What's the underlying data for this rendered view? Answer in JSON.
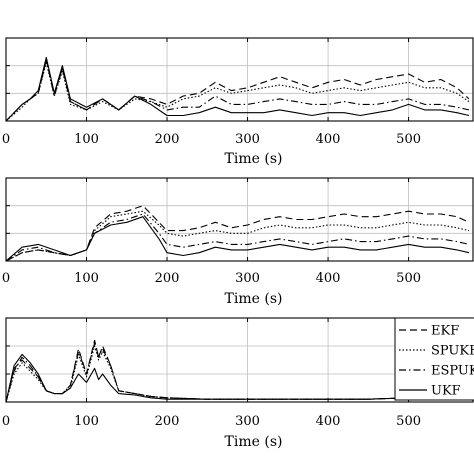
{
  "chart_data": [
    {
      "type": "line",
      "xlabel": "Time (s)",
      "xlim": [
        0,
        580
      ],
      "xticks": [
        0,
        100,
        200,
        300,
        400,
        500
      ],
      "xtick_labels": [
        "0",
        "100",
        "200",
        "300",
        "400",
        "500"
      ],
      "ylim": [
        0,
        3
      ],
      "yticks": [
        0,
        1,
        2,
        3
      ],
      "grid": true,
      "series": [
        {
          "name": "EKF",
          "x": [
            0,
            20,
            30,
            40,
            50,
            60,
            70,
            80,
            100,
            120,
            140,
            160,
            180,
            200,
            220,
            240,
            260,
            280,
            300,
            320,
            340,
            360,
            380,
            400,
            420,
            440,
            460,
            480,
            500,
            520,
            540,
            560,
            575
          ],
          "y": [
            0,
            0.6,
            0.8,
            1.0,
            2.2,
            1.0,
            1.9,
            0.7,
            0.4,
            0.8,
            0.4,
            0.9,
            0.8,
            0.6,
            0.9,
            1.0,
            1.4,
            1.1,
            1.2,
            1.4,
            1.6,
            1.4,
            1.2,
            1.4,
            1.5,
            1.3,
            1.5,
            1.6,
            1.7,
            1.4,
            1.5,
            1.2,
            0.8
          ]
        },
        {
          "name": "SPUKF",
          "x": [
            0,
            20,
            30,
            40,
            50,
            60,
            70,
            80,
            100,
            120,
            140,
            160,
            180,
            200,
            220,
            240,
            260,
            280,
            300,
            320,
            340,
            360,
            380,
            400,
            420,
            440,
            460,
            480,
            500,
            520,
            540,
            560,
            575
          ],
          "y": [
            0,
            0.5,
            0.8,
            1.0,
            2.1,
            0.9,
            1.8,
            0.6,
            0.4,
            0.7,
            0.4,
            0.8,
            0.7,
            0.5,
            0.8,
            0.9,
            1.2,
            1.0,
            1.1,
            1.2,
            1.3,
            1.2,
            1.0,
            1.1,
            1.2,
            1.1,
            1.2,
            1.3,
            1.4,
            1.2,
            1.2,
            1.0,
            0.7
          ]
        },
        {
          "name": "ESPUKF",
          "x": [
            0,
            20,
            30,
            40,
            50,
            60,
            70,
            80,
            100,
            120,
            140,
            160,
            180,
            200,
            220,
            240,
            260,
            280,
            300,
            320,
            340,
            360,
            380,
            400,
            420,
            440,
            460,
            480,
            500,
            520,
            540,
            560,
            575
          ],
          "y": [
            0,
            0.6,
            0.8,
            1.0,
            2.2,
            0.9,
            1.9,
            0.7,
            0.4,
            0.8,
            0.4,
            0.9,
            0.7,
            0.4,
            0.5,
            0.5,
            0.9,
            0.6,
            0.6,
            0.7,
            0.8,
            0.7,
            0.6,
            0.6,
            0.7,
            0.6,
            0.6,
            0.7,
            0.8,
            0.6,
            0.6,
            0.5,
            0.4
          ]
        },
        {
          "name": "UKF",
          "x": [
            0,
            20,
            30,
            40,
            50,
            60,
            70,
            80,
            100,
            120,
            140,
            160,
            180,
            200,
            220,
            240,
            260,
            280,
            300,
            320,
            340,
            360,
            380,
            400,
            420,
            440,
            460,
            480,
            500,
            520,
            540,
            560,
            575
          ],
          "y": [
            0,
            0.6,
            0.8,
            1.1,
            2.3,
            1.0,
            2.0,
            0.8,
            0.5,
            0.8,
            0.4,
            0.9,
            0.6,
            0.2,
            0.2,
            0.3,
            0.5,
            0.3,
            0.3,
            0.3,
            0.4,
            0.3,
            0.2,
            0.3,
            0.3,
            0.2,
            0.3,
            0.4,
            0.6,
            0.4,
            0.4,
            0.3,
            0.2
          ]
        }
      ]
    },
    {
      "type": "line",
      "xlabel": "Time (s)",
      "xlim": [
        0,
        580
      ],
      "xticks": [
        0,
        100,
        200,
        300,
        400,
        500
      ],
      "xtick_labels": [
        "0",
        "100",
        "200",
        "300",
        "400",
        "500"
      ],
      "ylim": [
        0,
        3
      ],
      "yticks": [
        0,
        1,
        2,
        3
      ],
      "grid": true,
      "series": [
        {
          "name": "EKF",
          "x": [
            0,
            20,
            40,
            60,
            80,
            100,
            110,
            130,
            150,
            170,
            190,
            200,
            220,
            240,
            260,
            280,
            300,
            320,
            340,
            360,
            380,
            400,
            420,
            440,
            460,
            480,
            500,
            520,
            540,
            560,
            575
          ],
          "y": [
            0,
            0.3,
            0.4,
            0.3,
            0.2,
            0.4,
            1.2,
            1.7,
            1.8,
            2.0,
            1.4,
            1.1,
            1.1,
            1.2,
            1.4,
            1.2,
            1.3,
            1.5,
            1.6,
            1.5,
            1.5,
            1.6,
            1.7,
            1.6,
            1.6,
            1.7,
            1.8,
            1.7,
            1.7,
            1.6,
            1.4
          ]
        },
        {
          "name": "SPUKF",
          "x": [
            0,
            20,
            40,
            60,
            80,
            100,
            110,
            130,
            150,
            170,
            190,
            200,
            220,
            240,
            260,
            280,
            300,
            320,
            340,
            360,
            380,
            400,
            420,
            440,
            460,
            480,
            500,
            520,
            540,
            560,
            575
          ],
          "y": [
            0,
            0.3,
            0.4,
            0.3,
            0.2,
            0.4,
            1.1,
            1.6,
            1.7,
            1.8,
            1.3,
            1.0,
            0.9,
            1.0,
            1.1,
            1.0,
            1.0,
            1.2,
            1.3,
            1.2,
            1.2,
            1.3,
            1.3,
            1.2,
            1.2,
            1.3,
            1.4,
            1.3,
            1.3,
            1.2,
            1.1
          ]
        },
        {
          "name": "ESPUKF",
          "x": [
            0,
            20,
            40,
            60,
            80,
            100,
            110,
            130,
            150,
            170,
            190,
            200,
            220,
            240,
            260,
            280,
            300,
            320,
            340,
            360,
            380,
            400,
            420,
            440,
            460,
            480,
            500,
            520,
            540,
            560,
            575
          ],
          "y": [
            0,
            0.4,
            0.5,
            0.3,
            0.2,
            0.4,
            1.0,
            1.4,
            1.5,
            1.7,
            1.0,
            0.6,
            0.5,
            0.6,
            0.7,
            0.6,
            0.6,
            0.7,
            0.8,
            0.7,
            0.6,
            0.7,
            0.8,
            0.7,
            0.7,
            0.8,
            0.9,
            0.8,
            0.8,
            0.7,
            0.6
          ]
        },
        {
          "name": "UKF",
          "x": [
            0,
            20,
            40,
            60,
            80,
            100,
            110,
            130,
            150,
            170,
            190,
            200,
            220,
            240,
            260,
            280,
            300,
            320,
            340,
            360,
            380,
            400,
            420,
            440,
            460,
            480,
            500,
            520,
            540,
            560,
            575
          ],
          "y": [
            0,
            0.5,
            0.6,
            0.4,
            0.2,
            0.4,
            1.0,
            1.3,
            1.4,
            1.6,
            0.8,
            0.3,
            0.2,
            0.3,
            0.5,
            0.4,
            0.4,
            0.5,
            0.6,
            0.5,
            0.4,
            0.5,
            0.5,
            0.4,
            0.4,
            0.5,
            0.6,
            0.5,
            0.5,
            0.4,
            0.3
          ]
        }
      ]
    },
    {
      "type": "line",
      "xlabel": "Time (s)",
      "xlim": [
        0,
        580
      ],
      "xticks": [
        0,
        100,
        200,
        300,
        400,
        500
      ],
      "xtick_labels": [
        "0",
        "100",
        "200",
        "300",
        "400",
        "500"
      ],
      "ylim": [
        0,
        3
      ],
      "yticks": [
        0,
        1,
        2,
        3
      ],
      "grid": true,
      "legend": "top-right",
      "series": [
        {
          "name": "EKF",
          "x": [
            0,
            10,
            20,
            30,
            40,
            50,
            60,
            70,
            80,
            90,
            100,
            110,
            115,
            120,
            130,
            140,
            160,
            180,
            200,
            250,
            300,
            350,
            400,
            450,
            500,
            550,
            575
          ],
          "y": [
            0,
            1.2,
            1.5,
            1.2,
            0.9,
            0.4,
            0.3,
            0.3,
            0.6,
            1.9,
            1.0,
            2.2,
            1.6,
            2.0,
            1.3,
            0.4,
            0.3,
            0.2,
            0.15,
            0.1,
            0.1,
            0.1,
            0.1,
            0.1,
            0.15,
            0.1,
            0.1
          ]
        },
        {
          "name": "SPUKF",
          "x": [
            0,
            10,
            20,
            30,
            40,
            50,
            60,
            70,
            80,
            90,
            100,
            110,
            115,
            120,
            130,
            140,
            160,
            180,
            200,
            250,
            300,
            350,
            400,
            450,
            500,
            550,
            575
          ],
          "y": [
            0,
            1.0,
            1.4,
            1.1,
            0.8,
            0.4,
            0.3,
            0.3,
            0.5,
            1.7,
            0.9,
            2.0,
            1.5,
            1.8,
            1.2,
            0.4,
            0.3,
            0.2,
            0.15,
            0.1,
            0.1,
            0.1,
            0.1,
            0.1,
            0.15,
            0.1,
            0.1
          ]
        },
        {
          "name": "ESPUKF",
          "x": [
            0,
            10,
            20,
            30,
            40,
            50,
            60,
            70,
            80,
            90,
            100,
            110,
            115,
            120,
            130,
            140,
            160,
            180,
            200,
            250,
            300,
            350,
            400,
            450,
            500,
            550,
            575
          ],
          "y": [
            0,
            1.1,
            1.6,
            1.3,
            0.9,
            0.4,
            0.3,
            0.3,
            0.6,
            1.8,
            1.0,
            2.1,
            1.6,
            1.9,
            1.3,
            0.4,
            0.3,
            0.2,
            0.15,
            0.1,
            0.1,
            0.1,
            0.1,
            0.1,
            0.15,
            0.1,
            0.1
          ]
        },
        {
          "name": "UKF",
          "x": [
            0,
            10,
            20,
            30,
            40,
            50,
            60,
            70,
            80,
            90,
            100,
            110,
            115,
            120,
            130,
            140,
            160,
            180,
            200,
            250,
            300,
            350,
            400,
            450,
            500,
            550,
            575
          ],
          "y": [
            0,
            1.3,
            1.7,
            1.4,
            1.0,
            0.4,
            0.3,
            0.3,
            0.5,
            1.0,
            0.7,
            1.2,
            0.8,
            1.0,
            0.6,
            0.3,
            0.25,
            0.15,
            0.1,
            0.1,
            0.1,
            0.1,
            0.1,
            0.1,
            0.15,
            0.1,
            0.1
          ]
        }
      ],
      "legend_entries": [
        "EKF",
        "SPUKF",
        "ESPUKF",
        "UKF"
      ]
    }
  ],
  "styles": {
    "line_color": "#000000",
    "grid_color": "#bfbfbf",
    "dash": {
      "EKF": "7,4",
      "SPUKF": "1.5,2",
      "ESPUKF": "7,3,1.5,3",
      "UKF": ""
    }
  }
}
